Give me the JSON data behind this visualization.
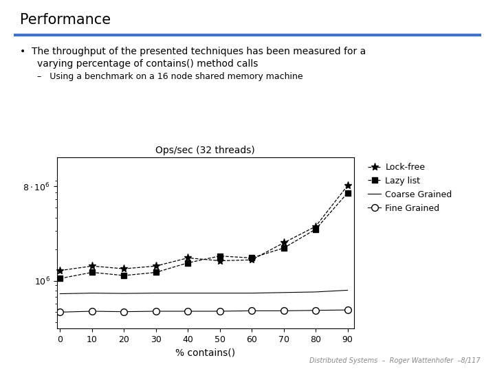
{
  "title": "Performance",
  "bullet_line1": "The throughput of the presented techniques has been measured for a",
  "bullet_line2": "varying percentage of contains() method calls",
  "sub_bullet": "Using a benchmark on a 16 node shared memory machine",
  "chart_title": "Ops/sec (32 threads)",
  "xlabel": "% contains()",
  "x": [
    0,
    10,
    20,
    30,
    40,
    50,
    60,
    70,
    80,
    90
  ],
  "lock_free": [
    1250000,
    1380000,
    1300000,
    1380000,
    1650000,
    1550000,
    1580000,
    2300000,
    3300000,
    8100000
  ],
  "lazy_list": [
    1050000,
    1200000,
    1120000,
    1200000,
    1480000,
    1720000,
    1650000,
    2050000,
    3100000,
    6900000
  ],
  "coarse_grained": [
    750000,
    760000,
    755000,
    760000,
    760000,
    760000,
    760000,
    770000,
    780000,
    810000
  ],
  "fine_grained": [
    500000,
    510000,
    505000,
    510000,
    510000,
    510000,
    515000,
    515000,
    520000,
    525000
  ],
  "footer": "Distributed Systems  –  Roger Wattenhofer  –8/117",
  "header_line_color": "#4472c4",
  "background_color": "#ffffff",
  "text_color": "#000000",
  "legend_labels": [
    "Lock-free",
    "Lazy list",
    "Coarse Grained",
    "Fine Grained"
  ]
}
